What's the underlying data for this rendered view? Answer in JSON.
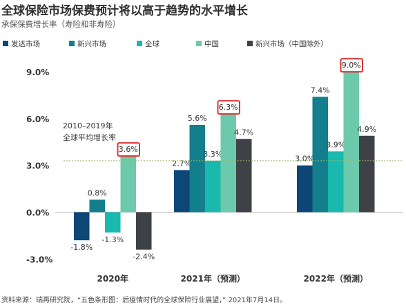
{
  "title": "全球保险市场保费预计将以高于趋势的水平增长",
  "subtitle": "承保保费增长率（寿险和非寿险）",
  "source": "资料来源：瑞再研究院，“五色条形图：后疫情时代的全球保险行业展望，” 2021年7月14日。",
  "annotation": {
    "line1": "2010–2019年",
    "line2": "全球平均增长率",
    "value": 3.3
  },
  "chart_data": {
    "type": "bar",
    "categories": [
      "2020年",
      "2021年（预测）",
      "2022年（预测）"
    ],
    "series": [
      {
        "name": "发达市场",
        "color": "#0d4677",
        "values": [
          -1.8,
          2.7,
          3.0
        ],
        "labels": [
          "-1.8%",
          "2.7%",
          "3.0%"
        ]
      },
      {
        "name": "新兴市场",
        "color": "#137f8c",
        "values": [
          0.8,
          5.6,
          7.4
        ],
        "labels": [
          "0.8%",
          "5.6%",
          "7.4%"
        ]
      },
      {
        "name": "全球",
        "color": "#19b9ad",
        "values": [
          -1.3,
          3.3,
          3.9
        ],
        "labels": [
          "-1.3%",
          "3.3%",
          "3.9%"
        ]
      },
      {
        "name": "中国",
        "color": "#6dc9ab",
        "values": [
          3.6,
          6.3,
          9.0
        ],
        "labels": [
          "3.6%",
          "6.3%",
          "9.0%"
        ]
      },
      {
        "name": "新兴市场（中国除外）",
        "color": "#3e4146",
        "values": [
          -2.4,
          4.7,
          4.9
        ],
        "labels": [
          "-2.4%",
          "4.7%",
          "4.9%"
        ]
      }
    ],
    "highlighted_series": "中国",
    "highlight_color": "#e03030",
    "ylim": [
      -3.0,
      9.0
    ],
    "yticks": [
      -3.0,
      0.0,
      3.0,
      6.0,
      9.0
    ],
    "ytick_labels": [
      "-3.0%",
      "0.0%",
      "3.0%",
      "6.0%",
      "9.0%"
    ],
    "legend_position": "top",
    "grid": false
  }
}
